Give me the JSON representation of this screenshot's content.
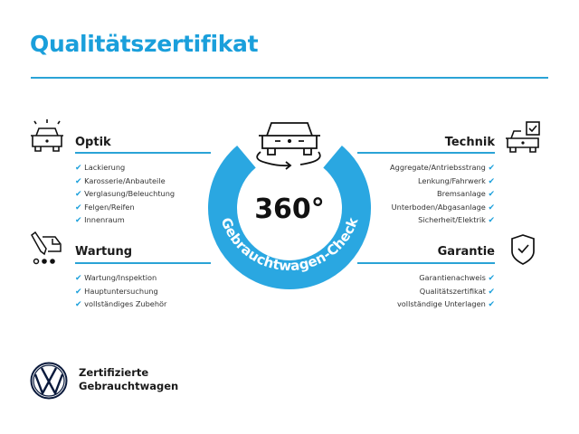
{
  "title": "Qualitätszertifikat",
  "accent_color": "#1a9fdb",
  "center_badge": {
    "number": "360°",
    "ring_text": "Gebrauchtwagen-Check",
    "icon": "car-rotate-icon"
  },
  "sections": {
    "optik": {
      "heading": "Optik",
      "icon": "car-lights-icon",
      "items": [
        "Lackierung",
        "Karosserie/Anbauteile",
        "Verglasung/Beleuchtung",
        "Felgen/Reifen",
        "Innenraum"
      ]
    },
    "wartung": {
      "heading": "Wartung",
      "icon": "service-truck-icon",
      "items": [
        "Wartung/Inspektion",
        "Hauptuntersuchung",
        "vollständiges Zubehör"
      ]
    },
    "technik": {
      "heading": "Technik",
      "icon": "car-checkbox-icon",
      "items": [
        "Aggregate/Antriebsstrang",
        "Lenkung/Fahrwerk",
        "Bremsanlage",
        "Unterboden/Abgasanlage",
        "Sicherheit/Elektrik"
      ]
    },
    "garantie": {
      "heading": "Garantie",
      "icon": "shield-check-icon",
      "items": [
        "Garantienachweis",
        "Qualitätszertifikat",
        "vollständige Unterlagen"
      ]
    }
  },
  "check_glyph": "✔",
  "brand": {
    "line1": "Zertifizierte",
    "line2": "Gebrauchtwagen",
    "logo": "vw-logo"
  }
}
